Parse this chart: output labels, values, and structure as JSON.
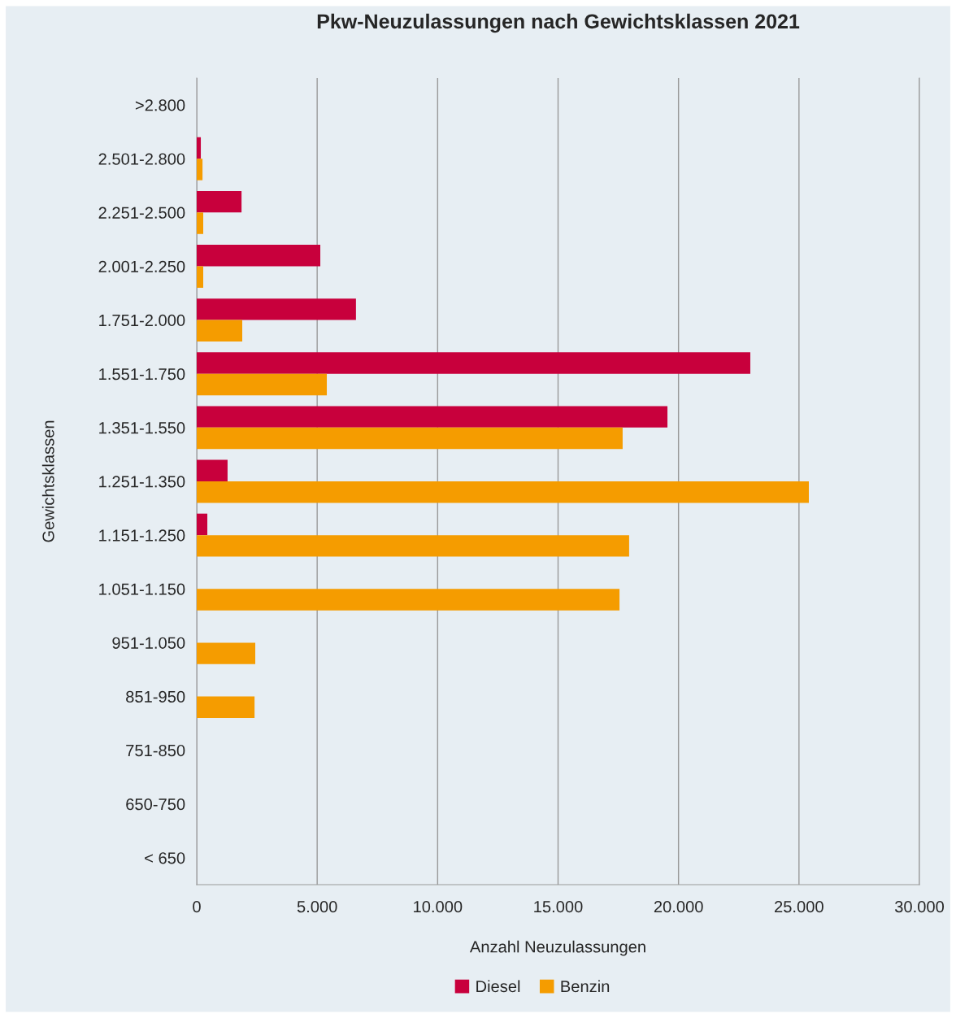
{
  "chart_data": {
    "type": "bar",
    "orientation": "horizontal",
    "title": "Pkw-Neuzulassungen nach Gewichtsklassen 2021",
    "xlabel": "Anzahl Neuzulassungen",
    "ylabel": "Gewichtsklassen",
    "categories": [
      ">2.800",
      "2.501-2.800",
      "2.251-2.500",
      "2.001-2.250",
      "1.751-2.000",
      "1.551-1.750",
      "1.351-1.550",
      "1.251-1.350",
      "1.151-1.250",
      "1.051-1.150",
      "951-1.050",
      "851-950",
      "751-850",
      "650-750",
      "< 650"
    ],
    "series": [
      {
        "name": "Diesel",
        "color": "#c8003c",
        "values": [
          0,
          170,
          1860,
          5130,
          6610,
          22980,
          19540,
          1280,
          440,
          0,
          0,
          0,
          0,
          0,
          0
        ]
      },
      {
        "name": "Benzin",
        "color": "#f59c00",
        "values": [
          0,
          240,
          270,
          270,
          1890,
          5400,
          17680,
          25410,
          17950,
          17550,
          2430,
          2400,
          0,
          0,
          0
        ]
      }
    ],
    "xlim": [
      0,
      30000
    ],
    "xticks": [
      0,
      {
        "value": 5000,
        "label": "5.000"
      },
      {
        "value": 10000,
        "label": "10.000"
      },
      {
        "value": 15000,
        "label": "15.000"
      },
      {
        "value": 20000,
        "label": "20.000"
      },
      {
        "value": 25000,
        "label": "25.000"
      },
      {
        "value": 30000,
        "label": "30.000"
      }
    ],
    "grid": "x",
    "legend": "bottom"
  }
}
